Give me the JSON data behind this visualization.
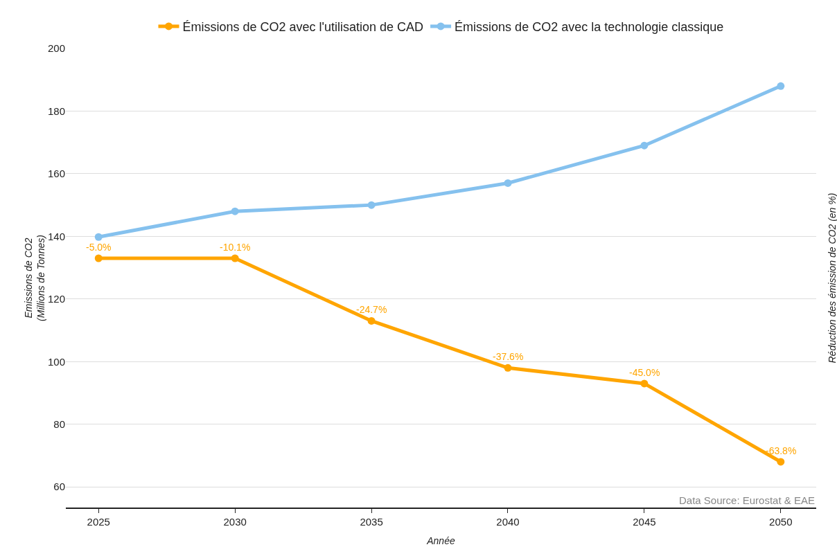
{
  "chart_data": {
    "type": "line",
    "xlabel": "Année",
    "ylabel": "Emissions de CO2\n(Millions de Tonnes)",
    "y2label": "Réduction des émission de CO2 (en %)",
    "x": [
      2025,
      2030,
      2035,
      2040,
      2045,
      2050
    ],
    "series": [
      {
        "name": "Émissions de CO2 avec l'utilisation de CAD",
        "color": "#ffa500",
        "values": [
          133,
          133,
          113,
          98,
          93,
          68
        ]
      },
      {
        "name": "Émissions de CO2 avec la technologie classique",
        "color": "#85c1ee",
        "values": [
          139.8,
          148,
          150,
          157,
          169,
          188
        ]
      }
    ],
    "xlim": [
      2023.8,
      2051.3
    ],
    "xticks": [
      2025,
      2030,
      2035,
      2040,
      2045,
      2050
    ],
    "ylim": [
      53.4,
      200
    ],
    "yticks": [
      60,
      80,
      100,
      120,
      140,
      160,
      180,
      200
    ],
    "grid": "y",
    "legend": "top",
    "marker": "circle",
    "line_style": "solid",
    "annotations": [
      "Data Source: Eurostat & EAE",
      {
        "text": "-5.0%",
        "x": 2025,
        "y": 133
      },
      {
        "text": "-10.1%",
        "x": 2030,
        "y": 133
      },
      {
        "text": "-24.7%",
        "x": 2035,
        "y": 113
      },
      {
        "text": "-37.6%",
        "x": 2040,
        "y": 98
      },
      {
        "text": "-45.0%",
        "x": 2045,
        "y": 93
      },
      {
        "text": "-63.8%",
        "x": 2050,
        "y": 68
      }
    ]
  }
}
